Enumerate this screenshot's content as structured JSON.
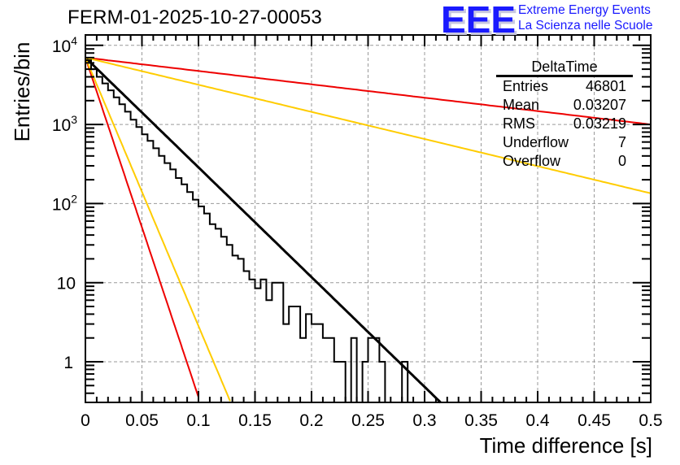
{
  "header": {
    "title": "FERM-01-2025-10-27-00053",
    "logo_letters": "EEE",
    "logo_line1": "Extreme Energy Events",
    "logo_line2": "La Scienza nelle Scuole"
  },
  "stats_box": {
    "name": "DeltaTime",
    "rows": [
      {
        "label": "Entries",
        "value": "46801"
      },
      {
        "label": "Mean",
        "value": "0.03207"
      },
      {
        "label": "RMS",
        "value": "0.03219"
      },
      {
        "label": "Underflow",
        "value": "7"
      },
      {
        "label": "Overflow",
        "value": "0"
      }
    ]
  },
  "colors": {
    "histogram": "#000000",
    "fit": "#000000",
    "red_bounds": "#ee0000",
    "yellow_bounds": "#ffcc00",
    "grid": "#999999",
    "logo": "#1a1aff"
  },
  "chart_data": {
    "type": "line",
    "title": "FERM-01-2025-10-27-00053",
    "xlabel": "Time difference [s]",
    "ylabel": "Entries/bin",
    "xlim": [
      0,
      0.5
    ],
    "ylim": [
      0.3,
      12000
    ],
    "yscale": "log",
    "grid": true,
    "x_ticks": [
      "0",
      "0.05",
      "0.1",
      "0.15",
      "0.2",
      "0.25",
      "0.3",
      "0.35",
      "0.4",
      "0.45",
      "0.5"
    ],
    "x_tick_values": [
      0,
      0.05,
      0.1,
      0.15,
      0.2,
      0.25,
      0.3,
      0.35,
      0.4,
      0.45,
      0.5
    ],
    "y_ticks": [
      {
        "value": 10000,
        "base": "10",
        "exp": "4"
      },
      {
        "value": 1000,
        "base": "10",
        "exp": "3"
      },
      {
        "value": 100,
        "base": "10",
        "exp": "2"
      },
      {
        "value": 10,
        "base": "10",
        "exp": ""
      },
      {
        "value": 1,
        "base": "1",
        "exp": ""
      }
    ],
    "histogram": {
      "name": "DeltaTime",
      "bin_width": 0.005,
      "x_start": 0,
      "values": [
        6500,
        5000,
        4000,
        3300,
        2700,
        2200,
        1800,
        1450,
        1150,
        930,
        750,
        620,
        500,
        400,
        325,
        270,
        210,
        175,
        140,
        112,
        92,
        75,
        55,
        48,
        38,
        30,
        22,
        20,
        14,
        11,
        8.5,
        11,
        6,
        10,
        10,
        3,
        5,
        5,
        2,
        4,
        3,
        3,
        2,
        2,
        1,
        1,
        0,
        2,
        0,
        1,
        2,
        2,
        1,
        0,
        0,
        0,
        1,
        0,
        0,
        0
      ]
    },
    "series": [
      {
        "name": "fit",
        "color": "#000000",
        "function": "exp",
        "A": 7000,
        "tau": 0.0313,
        "x_range": [
          0,
          0.327
        ]
      },
      {
        "name": "red-shallow",
        "color": "#ee0000",
        "function": "exp",
        "A": 7000,
        "tau": 0.257,
        "x_range": [
          0,
          0.5
        ]
      },
      {
        "name": "yellow-shallow",
        "color": "#ffcc00",
        "function": "exp",
        "A": 7000,
        "tau": 0.1266,
        "x_range": [
          0,
          0.5
        ]
      },
      {
        "name": "red-steep",
        "color": "#ee0000",
        "function": "exp",
        "A": 7000,
        "tau": 0.01012,
        "x_range": [
          0,
          0.1
        ]
      },
      {
        "name": "yellow-steep",
        "color": "#ffcc00",
        "function": "exp",
        "A": 7000,
        "tau": 0.0128,
        "x_range": [
          0,
          0.128
        ]
      }
    ]
  }
}
